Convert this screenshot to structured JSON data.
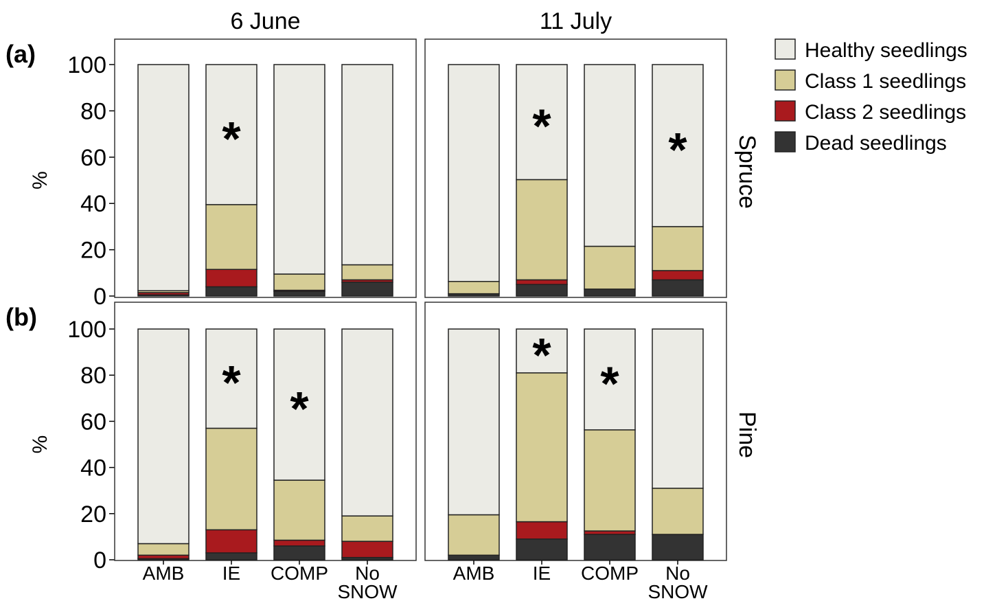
{
  "chart_data": {
    "type": "bar",
    "stacked": true,
    "columns": [
      "6 June",
      "11 July"
    ],
    "rows": [
      {
        "panel_label": "(a)",
        "species": "Spruce",
        "ylabel": "%"
      },
      {
        "panel_label": "(b)",
        "species": "Pine",
        "ylabel": "%"
      }
    ],
    "categories": [
      {
        "line1": "AMB",
        "line2": ""
      },
      {
        "line1": "IE",
        "line2": ""
      },
      {
        "line1": "COMP",
        "line2": ""
      },
      {
        "line1": "No",
        "line2": "SNOW"
      }
    ],
    "ylim": [
      0,
      100
    ],
    "yticks": [
      "0",
      "20",
      "40",
      "60",
      "80",
      "100"
    ],
    "significance_marker": "*",
    "series": [
      {
        "name": "Dead seedlings",
        "color": "#333333"
      },
      {
        "name": "Class 2 seedlings",
        "color": "#a91a1e"
      },
      {
        "name": "Class 1 seedlings",
        "color": "#d6cd96"
      },
      {
        "name": "Healthy seedlings",
        "color": "#ebebe5"
      }
    ],
    "legend_order": [
      "Healthy seedlings",
      "Class 1 seedlings",
      "Class 2 seedlings",
      "Dead seedlings"
    ],
    "legend_position": "top-right",
    "panels": [
      {
        "row": 0,
        "col": 0,
        "bars": [
          {
            "dead": 0.5,
            "class2": 1.0,
            "class1": 0.8,
            "healthy": 97.7,
            "significant": false
          },
          {
            "dead": 4.0,
            "class2": 7.5,
            "class1": 28.0,
            "healthy": 60.5,
            "significant": true
          },
          {
            "dead": 2.0,
            "class2": 0.5,
            "class1": 7.0,
            "healthy": 90.5,
            "significant": false
          },
          {
            "dead": 6.0,
            "class2": 1.0,
            "class1": 6.5,
            "healthy": 86.5,
            "significant": false
          }
        ]
      },
      {
        "row": 0,
        "col": 1,
        "bars": [
          {
            "dead": 1.0,
            "class2": 0.0,
            "class1": 5.3,
            "healthy": 93.7,
            "significant": false
          },
          {
            "dead": 5.0,
            "class2": 2.0,
            "class1": 43.3,
            "healthy": 49.7,
            "significant": true
          },
          {
            "dead": 3.0,
            "class2": 0.0,
            "class1": 18.5,
            "healthy": 78.5,
            "significant": false
          },
          {
            "dead": 7.0,
            "class2": 4.0,
            "class1": 19.0,
            "healthy": 70.0,
            "significant": true
          }
        ]
      },
      {
        "row": 1,
        "col": 0,
        "bars": [
          {
            "dead": 0.5,
            "class2": 1.5,
            "class1": 5.0,
            "healthy": 93.0,
            "significant": false
          },
          {
            "dead": 3.0,
            "class2": 10.0,
            "class1": 44.0,
            "healthy": 43.0,
            "significant": true
          },
          {
            "dead": 6.0,
            "class2": 2.5,
            "class1": 26.0,
            "healthy": 65.5,
            "significant": true
          },
          {
            "dead": 1.0,
            "class2": 7.0,
            "class1": 11.0,
            "healthy": 81.0,
            "significant": false
          }
        ]
      },
      {
        "row": 1,
        "col": 1,
        "bars": [
          {
            "dead": 2.0,
            "class2": 0.0,
            "class1": 17.5,
            "healthy": 80.5,
            "significant": false
          },
          {
            "dead": 9.0,
            "class2": 7.5,
            "class1": 64.5,
            "healthy": 19.0,
            "significant": true
          },
          {
            "dead": 11.0,
            "class2": 1.5,
            "class1": 43.8,
            "healthy": 43.7,
            "significant": true
          },
          {
            "dead": 11.0,
            "class2": 0.0,
            "class1": 20.0,
            "healthy": 69.0,
            "significant": false
          }
        ]
      }
    ]
  }
}
